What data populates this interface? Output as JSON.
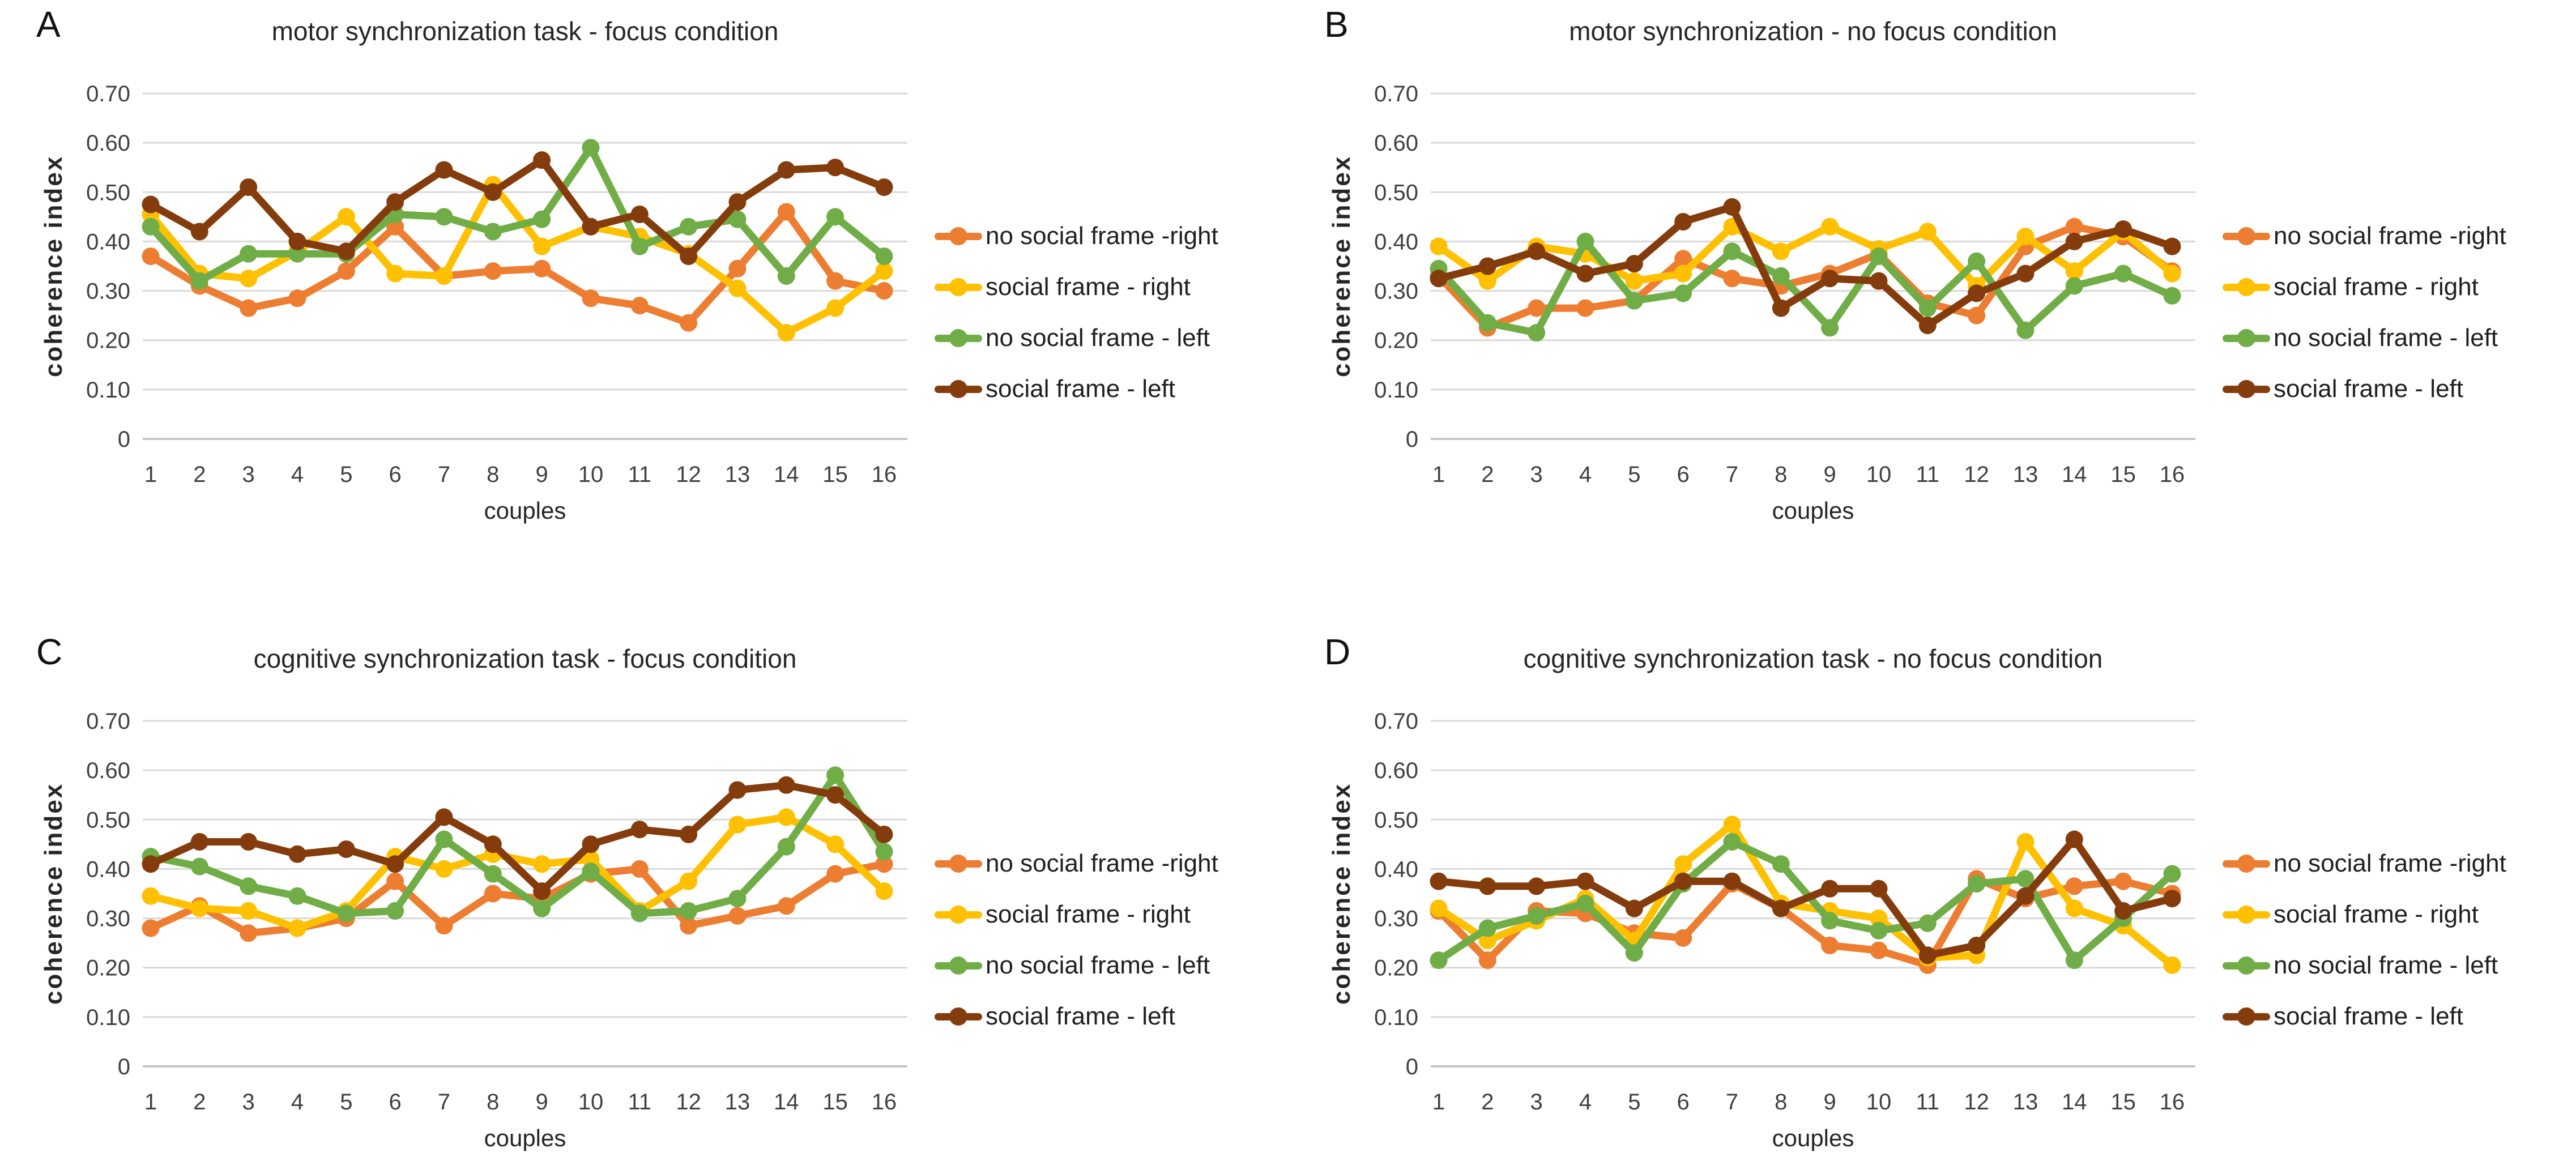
{
  "figure": {
    "background": "#ffffff",
    "gridline_color": "#d9d9d9",
    "axis_text_color": "#404040",
    "y_ticks": [
      "0.70",
      "0.60",
      "0.50",
      "0.40",
      "0.30",
      "0.20",
      "0.10",
      "0"
    ],
    "x_ticks": [
      "1",
      "2",
      "3",
      "4",
      "5",
      "6",
      "7",
      "8",
      "9",
      "10",
      "11",
      "12",
      "13",
      "14",
      "15",
      "16"
    ],
    "legend_labels": [
      "no social frame -right",
      "social frame - right",
      "no social frame - left",
      "social frame - left"
    ],
    "series_colors": [
      "#ED7D31",
      "#FFC000",
      "#70AD47",
      "#843C0C"
    ]
  },
  "chart_data": [
    {
      "type": "line",
      "letter": "A",
      "title": "motor synchronization task - focus condition",
      "xlabel": "couples",
      "ylabel": "coherence index",
      "ylim": [
        0,
        0.7
      ],
      "grid": true,
      "legend_position": "right",
      "marker": "circle",
      "categories": [
        1,
        2,
        3,
        4,
        5,
        6,
        7,
        8,
        9,
        10,
        11,
        12,
        13,
        14,
        15,
        16
      ],
      "series": [
        {
          "name": "no social frame -right",
          "color": "#ED7D31",
          "values": [
            0.37,
            0.31,
            0.265,
            0.285,
            0.34,
            0.43,
            0.33,
            0.34,
            0.345,
            0.285,
            0.27,
            0.235,
            0.345,
            0.46,
            0.32,
            0.3
          ]
        },
        {
          "name": "social frame - right",
          "color": "#FFC000",
          "values": [
            0.455,
            0.335,
            0.325,
            0.38,
            0.45,
            0.335,
            0.33,
            0.515,
            0.39,
            0.43,
            0.41,
            0.375,
            0.305,
            0.215,
            0.265,
            0.34
          ]
        },
        {
          "name": "no social frame - left",
          "color": "#70AD47",
          "values": [
            0.43,
            0.32,
            0.375,
            0.375,
            0.375,
            0.455,
            0.45,
            0.42,
            0.445,
            0.59,
            0.39,
            0.43,
            0.445,
            0.33,
            0.45,
            0.37
          ]
        },
        {
          "name": "social frame - left",
          "color": "#843C0C",
          "values": [
            0.475,
            0.42,
            0.51,
            0.4,
            0.38,
            0.48,
            0.545,
            0.5,
            0.565,
            0.43,
            0.455,
            0.37,
            0.48,
            0.545,
            0.55,
            0.51
          ]
        }
      ]
    },
    {
      "type": "line",
      "letter": "B",
      "title": "motor synchronization - no focus condition",
      "xlabel": "couples",
      "ylabel": "coherence index",
      "ylim": [
        0,
        0.7
      ],
      "grid": true,
      "legend_position": "right",
      "marker": "circle",
      "categories": [
        1,
        2,
        3,
        4,
        5,
        6,
        7,
        8,
        9,
        10,
        11,
        12,
        13,
        14,
        15,
        16
      ],
      "series": [
        {
          "name": "no social frame -right",
          "color": "#ED7D31",
          "values": [
            0.33,
            0.225,
            0.265,
            0.265,
            0.28,
            0.365,
            0.325,
            0.31,
            0.335,
            0.375,
            0.275,
            0.25,
            0.39,
            0.43,
            0.41,
            0.34
          ]
        },
        {
          "name": "social frame - right",
          "color": "#FFC000",
          "values": [
            0.39,
            0.32,
            0.39,
            0.375,
            0.32,
            0.335,
            0.43,
            0.38,
            0.43,
            0.385,
            0.42,
            0.31,
            0.41,
            0.34,
            0.42,
            0.335
          ]
        },
        {
          "name": "no social frame - left",
          "color": "#70AD47",
          "values": [
            0.345,
            0.235,
            0.215,
            0.4,
            0.28,
            0.295,
            0.38,
            0.33,
            0.225,
            0.37,
            0.265,
            0.36,
            0.22,
            0.31,
            0.335,
            0.29
          ]
        },
        {
          "name": "social frame - left",
          "color": "#843C0C",
          "values": [
            0.325,
            0.35,
            0.38,
            0.335,
            0.355,
            0.44,
            0.47,
            0.265,
            0.325,
            0.32,
            0.23,
            0.295,
            0.335,
            0.4,
            0.425,
            0.39
          ]
        }
      ]
    },
    {
      "type": "line",
      "letter": "C",
      "title": "cognitive synchronization task - focus condition",
      "xlabel": "couples",
      "ylabel": "coherence index",
      "ylim": [
        0,
        0.7
      ],
      "grid": true,
      "legend_position": "right",
      "marker": "circle",
      "categories": [
        1,
        2,
        3,
        4,
        5,
        6,
        7,
        8,
        9,
        10,
        11,
        12,
        13,
        14,
        15,
        16
      ],
      "series": [
        {
          "name": "no social frame -right",
          "color": "#ED7D31",
          "values": [
            0.28,
            0.325,
            0.27,
            0.28,
            0.3,
            0.375,
            0.285,
            0.35,
            0.34,
            0.39,
            0.4,
            0.285,
            0.305,
            0.325,
            0.39,
            0.41
          ]
        },
        {
          "name": "social frame - right",
          "color": "#FFC000",
          "values": [
            0.345,
            0.32,
            0.315,
            0.28,
            0.315,
            0.425,
            0.4,
            0.43,
            0.41,
            0.42,
            0.315,
            0.375,
            0.49,
            0.505,
            0.45,
            0.355
          ]
        },
        {
          "name": "no social frame - left",
          "color": "#70AD47",
          "values": [
            0.425,
            0.405,
            0.365,
            0.345,
            0.31,
            0.315,
            0.46,
            0.39,
            0.32,
            0.395,
            0.31,
            0.315,
            0.34,
            0.445,
            0.59,
            0.435
          ]
        },
        {
          "name": "social frame - left",
          "color": "#843C0C",
          "values": [
            0.41,
            0.455,
            0.455,
            0.43,
            0.44,
            0.41,
            0.505,
            0.45,
            0.355,
            0.45,
            0.48,
            0.47,
            0.56,
            0.57,
            0.55,
            0.47
          ]
        }
      ]
    },
    {
      "type": "line",
      "letter": "D",
      "title": "cognitive synchronization task - no focus condition",
      "xlabel": "couples",
      "ylabel": "coherence index",
      "ylim": [
        0,
        0.7
      ],
      "grid": true,
      "legend_position": "right",
      "marker": "circle",
      "categories": [
        1,
        2,
        3,
        4,
        5,
        6,
        7,
        8,
        9,
        10,
        11,
        12,
        13,
        14,
        15,
        16
      ],
      "series": [
        {
          "name": "no social frame -right",
          "color": "#ED7D31",
          "values": [
            0.315,
            0.215,
            0.315,
            0.31,
            0.27,
            0.26,
            0.37,
            0.32,
            0.245,
            0.235,
            0.205,
            0.38,
            0.34,
            0.365,
            0.375,
            0.35
          ]
        },
        {
          "name": "social frame - right",
          "color": "#FFC000",
          "values": [
            0.32,
            0.255,
            0.295,
            0.34,
            0.255,
            0.41,
            0.49,
            0.33,
            0.315,
            0.3,
            0.22,
            0.225,
            0.455,
            0.32,
            0.285,
            0.205
          ]
        },
        {
          "name": "no social frame - left",
          "color": "#70AD47",
          "values": [
            0.215,
            0.28,
            0.305,
            0.33,
            0.23,
            0.37,
            0.455,
            0.41,
            0.295,
            0.275,
            0.29,
            0.37,
            0.38,
            0.215,
            0.3,
            0.39
          ]
        },
        {
          "name": "social frame - left",
          "color": "#843C0C",
          "values": [
            0.375,
            0.365,
            0.365,
            0.375,
            0.32,
            0.375,
            0.375,
            0.32,
            0.36,
            0.36,
            0.225,
            0.245,
            0.345,
            0.46,
            0.315,
            0.34
          ]
        }
      ]
    }
  ]
}
